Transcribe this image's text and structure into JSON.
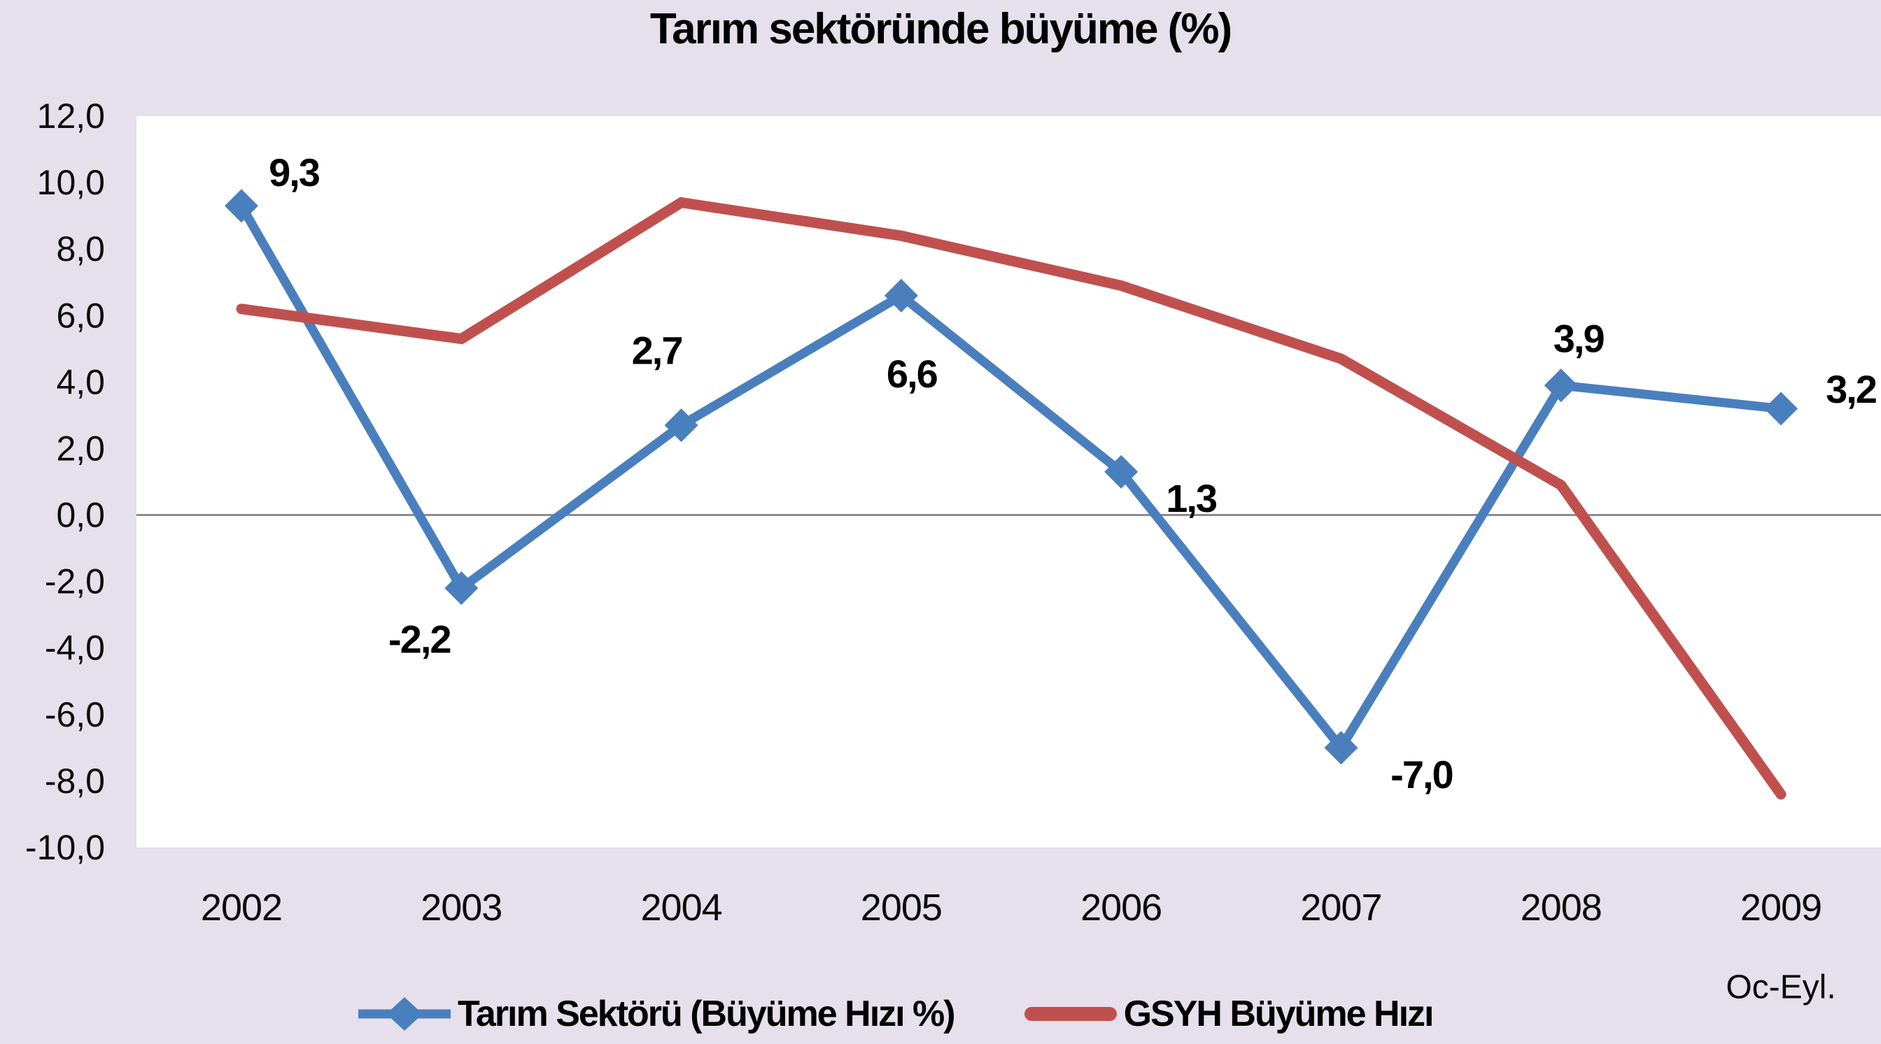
{
  "title": "Tarım sektöründe büyüme (%)",
  "chart_data": {
    "type": "line",
    "categories": [
      "2002",
      "2003",
      "2004",
      "2005",
      "2006",
      "2007",
      "2008",
      "2009"
    ],
    "x_sub_label": "Oc-Eyl.",
    "xlabel": "",
    "ylabel": "",
    "ylim": [
      -10,
      12
    ],
    "ytick_step": 2,
    "ytick_labels": [
      "12,0",
      "10,0",
      "8,0",
      "6,0",
      "4,0",
      "2,0",
      "0,0",
      "-2,0",
      "-4,0",
      "-6,0",
      "-8,0",
      "-10,0"
    ],
    "grid": "zero-line-only",
    "legend_position": "bottom",
    "series": [
      {
        "name": "Tarım Sektörü (Büyüme Hızı %)",
        "color": "#4A7FBD",
        "marker": "diamond",
        "values": [
          9.3,
          -2.2,
          2.7,
          6.6,
          1.3,
          -7.0,
          3.9,
          3.2
        ],
        "labels": [
          "9,3",
          "-2,2",
          "2,7",
          "6,6",
          "1,3",
          "-7,0",
          "3,9",
          "3,2"
        ]
      },
      {
        "name": "GSYH Büyüme Hızı",
        "color": "#C0504D",
        "marker": "none",
        "values": [
          6.2,
          5.3,
          9.4,
          8.4,
          6.9,
          4.7,
          0.9,
          -8.4
        ],
        "labels": []
      }
    ]
  },
  "colors": {
    "background": "#E5E0EC",
    "plot_background": "#FFFFFF",
    "zero_line": "#8C8C8C",
    "text": "#000000"
  }
}
